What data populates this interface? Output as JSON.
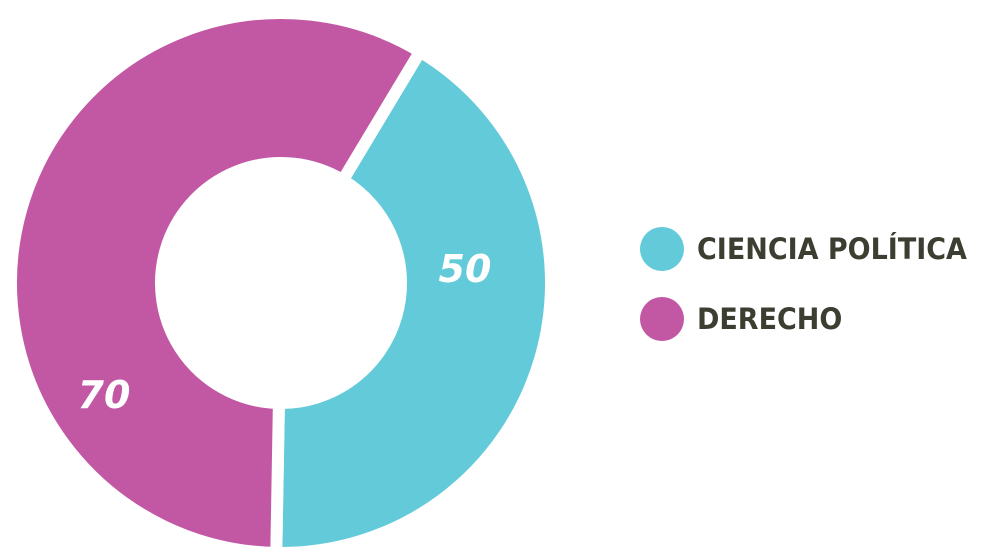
{
  "chart_data": {
    "type": "pie",
    "categories": [
      "CIENCIA POLÍTICA",
      "DERECHO"
    ],
    "values": [
      50,
      70
    ],
    "colors": [
      "#62cad9",
      "#c258a3"
    ],
    "data_labels": [
      "50",
      "70"
    ],
    "donut": true,
    "legend_position": "right"
  }
}
